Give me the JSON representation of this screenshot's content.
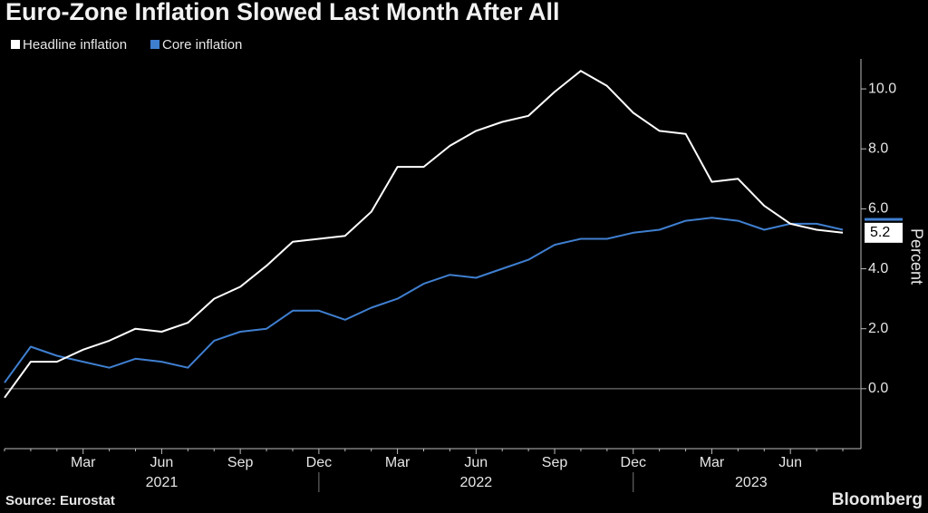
{
  "chart_data": {
    "type": "line",
    "title": "Euro-Zone Inflation Slowed Last Month After All",
    "y_label": "Percent",
    "source": "Source: Eurostat",
    "brand": "Bloomberg",
    "categories": [
      null,
      null,
      null,
      "Mar",
      null,
      null,
      "Jun",
      null,
      null,
      "Sep",
      null,
      null,
      "Dec",
      null,
      null,
      "Mar",
      null,
      null,
      "Jun",
      null,
      null,
      "Sep",
      null,
      null,
      "Dec",
      null,
      null,
      "Mar",
      null,
      null,
      "Jun",
      null,
      null
    ],
    "year_labels": [
      "2021",
      "2022",
      "2023"
    ],
    "series": [
      {
        "name": "Headline inflation",
        "color": "#ffffff",
        "values": [
          -0.3,
          0.9,
          0.9,
          1.3,
          1.6,
          2.0,
          1.9,
          2.2,
          3.0,
          3.4,
          4.1,
          4.9,
          5.0,
          5.1,
          5.9,
          7.4,
          7.4,
          8.1,
          8.6,
          8.9,
          9.1,
          9.9,
          10.6,
          10.1,
          9.2,
          8.6,
          8.5,
          6.9,
          7.0,
          6.1,
          5.5,
          5.3,
          5.2
        ],
        "last_value_label": "5.2"
      },
      {
        "name": "Core inflation",
        "color": "#3f7fd0",
        "values": [
          0.2,
          1.4,
          1.1,
          0.9,
          0.7,
          1.0,
          0.9,
          0.7,
          1.6,
          1.9,
          2.0,
          2.6,
          2.6,
          2.3,
          2.7,
          3.0,
          3.5,
          3.8,
          3.7,
          4.0,
          4.3,
          4.8,
          5.0,
          5.0,
          5.2,
          5.3,
          5.6,
          5.7,
          5.6,
          5.3,
          5.5,
          5.5,
          5.3
        ]
      }
    ],
    "ylim": [
      -2.0,
      11.0
    ],
    "yticks": [
      {
        "value": 0,
        "label": "0.0"
      },
      {
        "value": 2,
        "label": "2.0"
      },
      {
        "value": 4,
        "label": "4.0"
      },
      {
        "value": 6,
        "label": "6.0"
      },
      {
        "value": 8,
        "label": "8.0"
      },
      {
        "value": 10,
        "label": "10.0"
      }
    ]
  }
}
